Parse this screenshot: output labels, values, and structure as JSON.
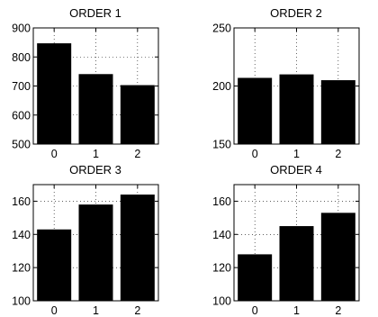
{
  "chart_data": [
    {
      "type": "bar",
      "title": "ORDER  1",
      "categories": [
        "0",
        "1",
        "2"
      ],
      "values": [
        847,
        741,
        703
      ],
      "ylim": [
        500,
        900
      ],
      "yticks": [
        500,
        600,
        700,
        800,
        900
      ],
      "xlabel": "",
      "ylabel": "",
      "grid": true,
      "bar_color": "#000000"
    },
    {
      "type": "bar",
      "title": "ORDER  2",
      "categories": [
        "0",
        "1",
        "2"
      ],
      "values": [
        207,
        210,
        205
      ],
      "ylim": [
        150,
        250
      ],
      "yticks": [
        150,
        200,
        250
      ],
      "xlabel": "",
      "ylabel": "",
      "grid": true,
      "bar_color": "#000000"
    },
    {
      "type": "bar",
      "title": "ORDER  3",
      "categories": [
        "0",
        "1",
        "2"
      ],
      "values": [
        143,
        158,
        164
      ],
      "ylim": [
        100,
        170
      ],
      "yticks": [
        100,
        120,
        140,
        160
      ],
      "xlabel": "",
      "ylabel": "",
      "grid": true,
      "bar_color": "#000000"
    },
    {
      "type": "bar",
      "title": "ORDER  4",
      "categories": [
        "0",
        "1",
        "2"
      ],
      "values": [
        128,
        145,
        153
      ],
      "ylim": [
        100,
        170
      ],
      "yticks": [
        100,
        120,
        140,
        160
      ],
      "xlabel": "",
      "ylabel": "",
      "grid": true,
      "bar_color": "#000000"
    }
  ]
}
